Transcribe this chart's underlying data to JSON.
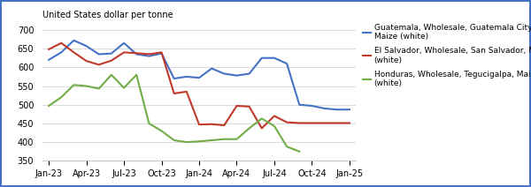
{
  "title": "United States dollar per tonne",
  "ylim": [
    350,
    720
  ],
  "yticks": [
    350,
    400,
    450,
    500,
    550,
    600,
    650,
    700
  ],
  "x_labels": [
    "Jan-23",
    "Apr-23",
    "Jul-23",
    "Oct-23",
    "Jan-24",
    "Apr-24",
    "Jul-24",
    "Oct-24",
    "Jan-25"
  ],
  "x_tick_positions": [
    0,
    3,
    6,
    9,
    12,
    15,
    18,
    21,
    24
  ],
  "n_points": 25,
  "blue_y": [
    620,
    640,
    672,
    657,
    635,
    637,
    665,
    635,
    630,
    637,
    570,
    575,
    572,
    597,
    583,
    578,
    583,
    625,
    625,
    610,
    500,
    497,
    490,
    487,
    487
  ],
  "red_y": [
    648,
    665,
    640,
    617,
    607,
    618,
    640,
    638,
    635,
    640,
    530,
    535,
    447,
    448,
    445,
    497,
    495,
    437,
    470,
    453,
    451,
    451,
    451,
    451,
    451
  ],
  "green_y": [
    497,
    520,
    553,
    550,
    543,
    580,
    545,
    580,
    450,
    430,
    405,
    400,
    402,
    405,
    408,
    408,
    437,
    463,
    443,
    388,
    375,
    null,
    null,
    null,
    null
  ],
  "colors": [
    "#4472C4",
    "#C0392B",
    "#70AD47"
  ],
  "legend_labels": [
    "Guatemala, Wholesale, Guatemala City,\nMaize (white)",
    "El Salvador, Wholesale, San Salvador, Maize\n(white)",
    "Honduras, Wholesale, Tegucigalpa, Maize\n(white)"
  ],
  "background_color": "#ffffff",
  "grid_color": "#cccccc",
  "fig_width": 6.0,
  "fig_height": 2.12,
  "dpi": 100
}
